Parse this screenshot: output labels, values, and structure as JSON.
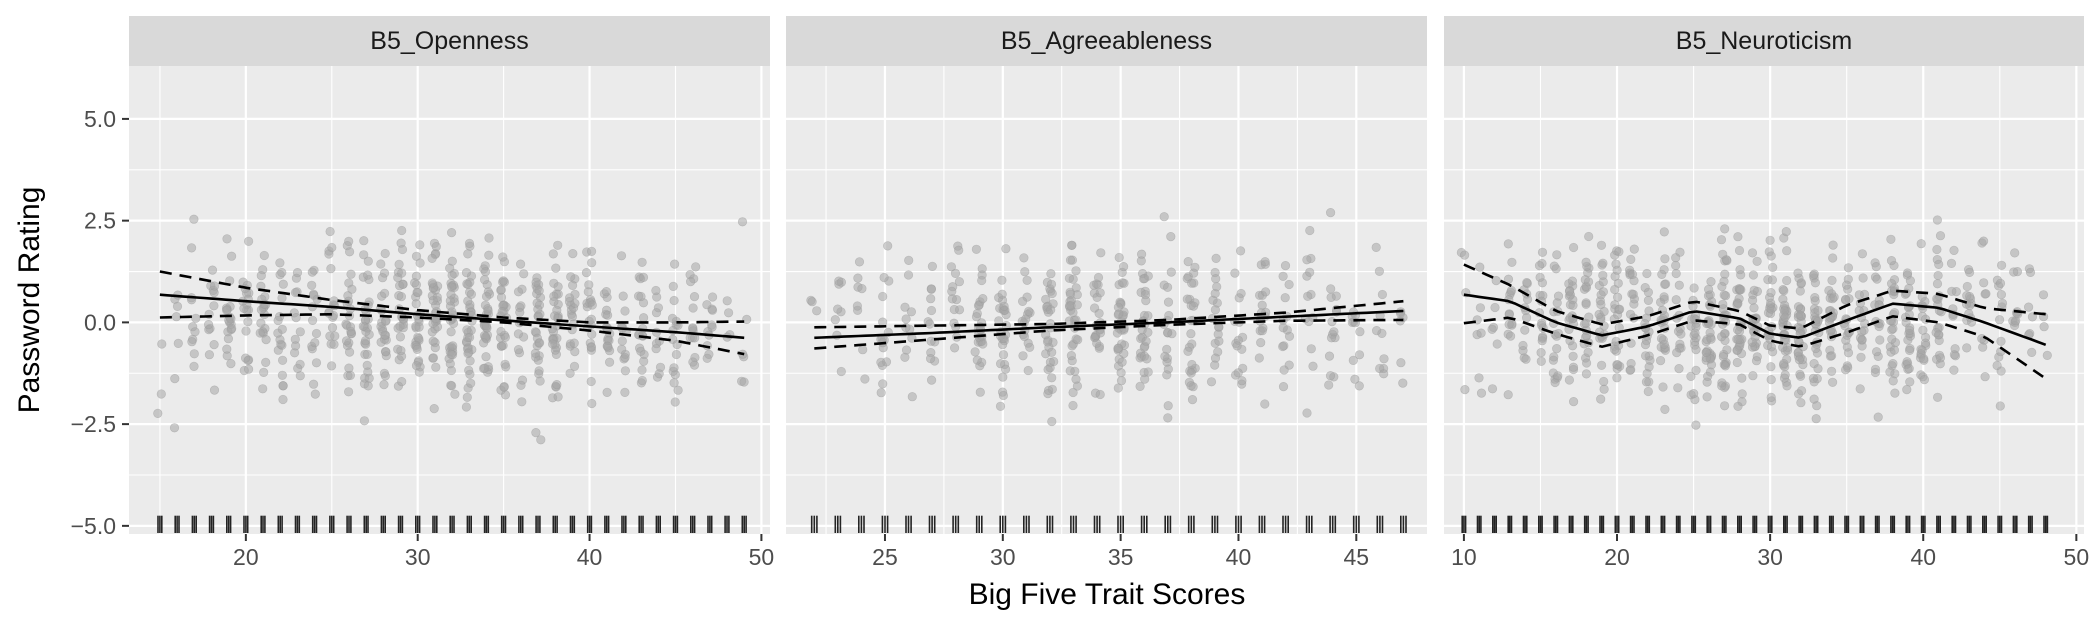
{
  "chart_data": {
    "type": "scatter",
    "xlabel": "Big Five Trait Scores",
    "ylabel": "Password Rating",
    "ylim": [
      -5.2,
      6.3
    ],
    "yticks": [
      -5.0,
      -2.5,
      0.0,
      2.5,
      5.0
    ],
    "ytick_labels": [
      "−5.0",
      "−2.5",
      "0.0",
      "2.5",
      "5.0"
    ],
    "grid": true,
    "rug": true,
    "facets": [
      {
        "title": "B5_Openness",
        "xlim": [
          13.2,
          50.5
        ],
        "xticks": [
          20,
          30,
          40,
          50
        ],
        "x_min": 15,
        "x_max": 49,
        "rating_center": 0.0,
        "fit": [
          [
            15,
            0.68
          ],
          [
            20,
            0.52
          ],
          [
            25,
            0.38
          ],
          [
            30,
            0.2
          ],
          [
            35,
            0.05
          ],
          [
            40,
            -0.1
          ],
          [
            45,
            -0.24
          ],
          [
            49,
            -0.38
          ]
        ],
        "upper": [
          [
            15,
            1.25
          ],
          [
            20,
            0.85
          ],
          [
            25,
            0.55
          ],
          [
            30,
            0.3
          ],
          [
            35,
            0.12
          ],
          [
            40,
            0.0
          ],
          [
            45,
            0.0
          ],
          [
            49,
            0.02
          ]
        ],
        "lower": [
          [
            15,
            0.12
          ],
          [
            20,
            0.17
          ],
          [
            25,
            0.2
          ],
          [
            30,
            0.12
          ],
          [
            35,
            0.0
          ],
          [
            40,
            -0.2
          ],
          [
            45,
            -0.45
          ],
          [
            49,
            -0.78
          ]
        ]
      },
      {
        "title": "B5_Agreeableness",
        "xlim": [
          20.8,
          48.0
        ],
        "xticks": [
          25,
          30,
          35,
          40,
          45
        ],
        "x_min": 22,
        "x_max": 47,
        "rating_center": 0.0,
        "fit": [
          [
            22,
            -0.38
          ],
          [
            27,
            -0.26
          ],
          [
            32,
            -0.12
          ],
          [
            37,
            0.0
          ],
          [
            42,
            0.14
          ],
          [
            47,
            0.28
          ]
        ],
        "upper": [
          [
            22,
            -0.12
          ],
          [
            27,
            -0.08
          ],
          [
            32,
            -0.04
          ],
          [
            37,
            0.06
          ],
          [
            42,
            0.24
          ],
          [
            47,
            0.52
          ]
        ],
        "lower": [
          [
            22,
            -0.64
          ],
          [
            27,
            -0.42
          ],
          [
            32,
            -0.2
          ],
          [
            37,
            -0.06
          ],
          [
            42,
            0.04
          ],
          [
            47,
            0.06
          ]
        ]
      },
      {
        "title": "B5_Neuroticism",
        "xlim": [
          8.7,
          50.5
        ],
        "xticks": [
          10,
          20,
          30,
          40,
          50
        ],
        "x_min": 10,
        "x_max": 48,
        "rating_center": 0.0,
        "fit": [
          [
            10,
            0.68
          ],
          [
            13,
            0.52
          ],
          [
            16,
            0.0
          ],
          [
            19,
            -0.32
          ],
          [
            22,
            -0.1
          ],
          [
            25,
            0.28
          ],
          [
            28,
            0.1
          ],
          [
            30,
            -0.28
          ],
          [
            32,
            -0.38
          ],
          [
            35,
            0.05
          ],
          [
            38,
            0.46
          ],
          [
            41,
            0.36
          ],
          [
            44,
            0.0
          ],
          [
            48,
            -0.55
          ]
        ],
        "upper": [
          [
            10,
            1.42
          ],
          [
            13,
            0.92
          ],
          [
            16,
            0.28
          ],
          [
            19,
            -0.05
          ],
          [
            22,
            0.15
          ],
          [
            25,
            0.52
          ],
          [
            28,
            0.28
          ],
          [
            30,
            -0.08
          ],
          [
            32,
            -0.15
          ],
          [
            35,
            0.42
          ],
          [
            38,
            0.78
          ],
          [
            41,
            0.7
          ],
          [
            44,
            0.35
          ],
          [
            48,
            0.2
          ]
        ],
        "lower": [
          [
            10,
            -0.02
          ],
          [
            13,
            0.12
          ],
          [
            16,
            -0.28
          ],
          [
            19,
            -0.6
          ],
          [
            22,
            -0.32
          ],
          [
            25,
            0.05
          ],
          [
            28,
            -0.05
          ],
          [
            30,
            -0.45
          ],
          [
            32,
            -0.6
          ],
          [
            35,
            -0.25
          ],
          [
            38,
            0.15
          ],
          [
            41,
            0.0
          ],
          [
            44,
            -0.35
          ],
          [
            48,
            -1.38
          ]
        ]
      }
    ]
  }
}
